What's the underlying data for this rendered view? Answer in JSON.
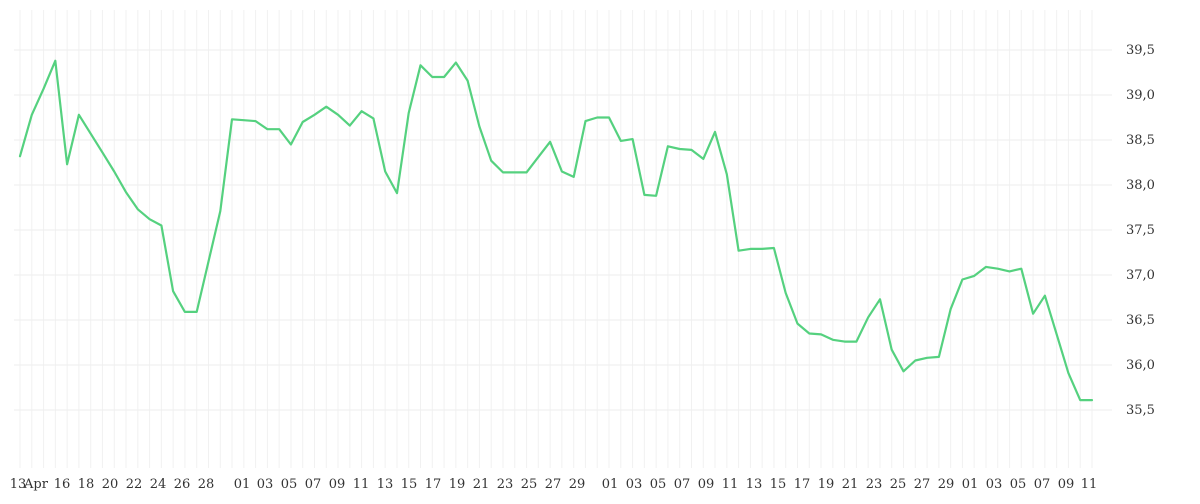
{
  "chart_data": {
    "type": "line",
    "title": "",
    "xlabel": "",
    "ylabel": "",
    "ylim": [
      35.0,
      39.8
    ],
    "grid": true,
    "y_axis_side": "right",
    "y_ticks": [
      "35,5",
      "36,0",
      "36,5",
      "37,0",
      "37,5",
      "38,0",
      "38,5",
      "39,0",
      "39,5"
    ],
    "x_tick_labels": [
      "13",
      "Apr",
      "16",
      "18",
      "20",
      "22",
      "24",
      "26",
      "28",
      "01",
      "03",
      "05",
      "07",
      "09",
      "11",
      "13",
      "15",
      "17",
      "19",
      "21",
      "23",
      "25",
      "27",
      "29",
      "01",
      "03",
      "05",
      "07",
      "09",
      "11",
      "13",
      "15",
      "17",
      "19",
      "21",
      "23",
      "25",
      "27",
      "29",
      "01",
      "03",
      "05",
      "07",
      "09",
      "11"
    ],
    "series": [
      {
        "color": "#55d17f",
        "values": [
          38.32,
          38.78,
          39.07,
          39.38,
          38.23,
          38.78,
          38.57,
          38.36,
          38.15,
          37.92,
          37.73,
          37.62,
          37.55,
          36.82,
          36.59,
          36.59,
          37.15,
          37.71,
          38.73,
          38.72,
          38.71,
          38.62,
          38.62,
          38.45,
          38.7,
          38.78,
          38.87,
          38.78,
          38.66,
          38.82,
          38.74,
          38.15,
          37.91,
          38.8,
          39.33,
          39.2,
          39.2,
          39.36,
          39.16,
          38.65,
          38.27,
          38.14,
          38.14,
          38.14,
          38.31,
          38.48,
          38.15,
          38.09,
          38.71,
          38.75,
          38.75,
          38.49,
          38.51,
          37.89,
          37.88,
          38.43,
          38.4,
          38.39,
          38.29,
          38.59,
          38.12,
          37.27,
          37.29,
          37.29,
          37.3,
          36.8,
          36.46,
          36.35,
          36.34,
          36.28,
          36.26,
          36.26,
          36.53,
          36.73,
          36.17,
          35.93,
          36.05,
          36.08,
          36.09,
          36.62,
          36.95,
          36.99,
          37.09,
          37.07,
          37.04,
          37.07,
          36.57,
          36.77,
          36.34,
          35.91,
          35.61,
          35.61
        ]
      }
    ]
  }
}
